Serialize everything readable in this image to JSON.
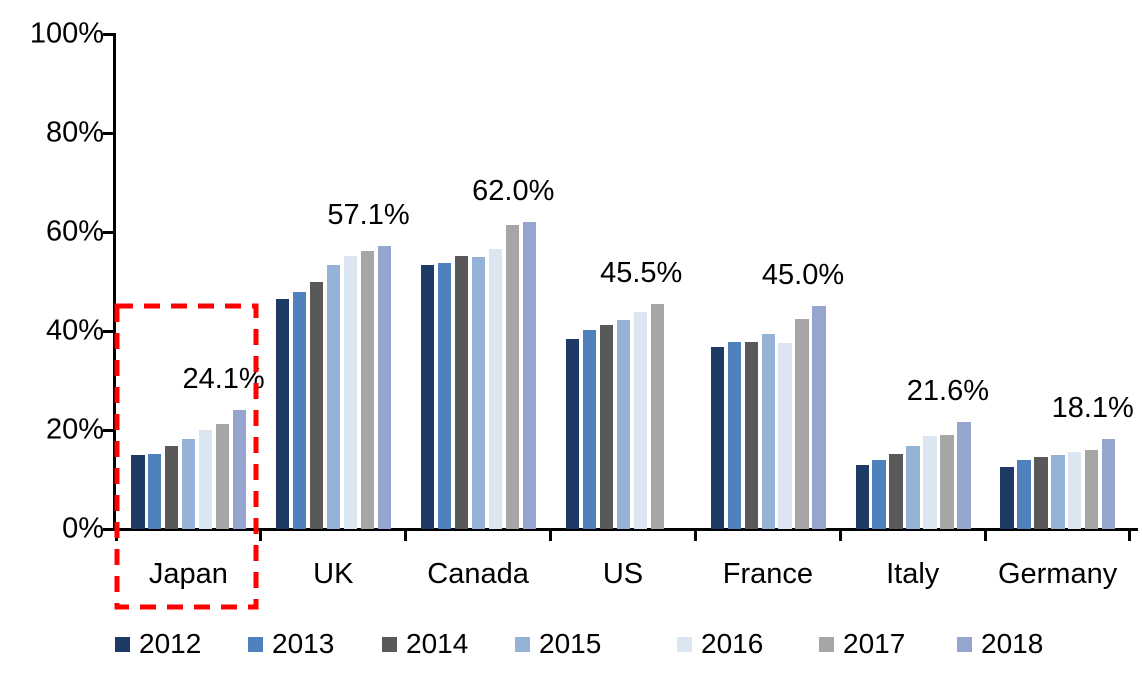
{
  "chart_data": {
    "type": "bar",
    "title": "",
    "categories": [
      "Japan",
      "UK",
      "Canada",
      "US",
      "France",
      "Italy",
      "Germany"
    ],
    "series": [
      {
        "name": "2012",
        "color": "#1C3A63",
        "values": [
          14.9,
          46.4,
          53.3,
          38.3,
          36.7,
          13.0,
          12.6
        ]
      },
      {
        "name": "2013",
        "color": "#4F81BD",
        "values": [
          15.1,
          47.8,
          53.7,
          40.3,
          37.8,
          14.0,
          13.9
        ]
      },
      {
        "name": "2014",
        "color": "#595959",
        "values": [
          16.8,
          50.0,
          55.2,
          41.2,
          37.8,
          15.1,
          14.5
        ]
      },
      {
        "name": "2015",
        "color": "#95B3D7",
        "values": [
          18.2,
          53.3,
          55.0,
          42.2,
          39.4,
          16.7,
          14.9
        ]
      },
      {
        "name": "2016",
        "color": "#DCE6F2",
        "values": [
          20.0,
          55.1,
          56.6,
          43.9,
          37.5,
          18.8,
          15.5
        ]
      },
      {
        "name": "2017",
        "color": "#A6A6A6",
        "values": [
          21.3,
          56.1,
          61.5,
          45.5,
          42.4,
          19.1,
          15.9
        ]
      },
      {
        "name": "2018",
        "color": "#95A5D0",
        "values": [
          24.1,
          57.1,
          62.0,
          null,
          45.0,
          21.6,
          18.1
        ]
      }
    ],
    "data_labels": [
      "24.1%",
      "57.1%",
      "62.0%",
      "45.5%",
      "45.0%",
      "21.6%",
      "18.1%"
    ],
    "y_ticks": [
      "0%",
      "20%",
      "40%",
      "60%",
      "80%",
      "100%"
    ],
    "y_tick_values": [
      0,
      20,
      40,
      60,
      80,
      100
    ],
    "ylim": [
      0,
      100
    ],
    "xlabel": "",
    "ylabel": "",
    "grid": false,
    "legend_position": "bottom",
    "axis_color": "#000000",
    "highlight": {
      "category": "Japan",
      "style": "dashed-box",
      "color": "#FF0000"
    }
  }
}
